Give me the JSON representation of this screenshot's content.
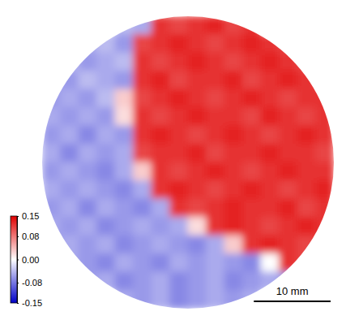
{
  "chart_data": {
    "type": "heatmap",
    "cells": [
      [
        null,
        null,
        null,
        null,
        -0.04,
        -0.05,
        0.12,
        0.11,
        0.12,
        0.13,
        0.11,
        0.12,
        null,
        null,
        null,
        null
      ],
      [
        null,
        null,
        -0.05,
        -0.04,
        -0.06,
        0.11,
        0.12,
        0.13,
        0.12,
        0.11,
        0.12,
        0.13,
        0.12,
        0.11,
        null,
        null
      ],
      [
        null,
        -0.04,
        -0.06,
        -0.05,
        -0.04,
        0.12,
        0.11,
        0.12,
        0.13,
        0.12,
        0.11,
        0.12,
        0.13,
        0.12,
        0.11,
        null
      ],
      [
        -0.05,
        -0.06,
        -0.04,
        -0.05,
        -0.06,
        0.12,
        0.13,
        0.11,
        0.12,
        0.12,
        0.13,
        0.11,
        0.12,
        0.13,
        0.12,
        0.11
      ],
      [
        -0.06,
        -0.05,
        -0.06,
        -0.04,
        0.03,
        0.11,
        0.12,
        0.13,
        0.12,
        0.11,
        0.12,
        0.13,
        0.12,
        0.11,
        0.12,
        0.12
      ],
      [
        -0.05,
        -0.06,
        -0.05,
        -0.06,
        0.02,
        0.12,
        0.11,
        0.12,
        0.13,
        0.12,
        0.12,
        0.11,
        0.13,
        0.12,
        0.11,
        0.12
      ],
      [
        -0.06,
        -0.05,
        -0.07,
        -0.05,
        -0.06,
        0.12,
        0.13,
        0.12,
        0.11,
        0.12,
        0.13,
        0.12,
        0.11,
        0.12,
        0.13,
        0.12
      ],
      [
        -0.05,
        -0.07,
        -0.05,
        -0.06,
        -0.05,
        0.11,
        0.12,
        0.12,
        0.13,
        0.11,
        0.12,
        0.12,
        0.13,
        0.12,
        0.12,
        0.11
      ],
      [
        -0.06,
        -0.05,
        -0.06,
        -0.07,
        -0.05,
        0.03,
        0.12,
        0.11,
        0.12,
        0.13,
        0.12,
        0.11,
        0.12,
        0.13,
        0.12,
        0.12
      ],
      [
        -0.05,
        -0.06,
        -0.05,
        -0.06,
        -0.07,
        -0.05,
        0.12,
        0.13,
        0.12,
        0.11,
        0.12,
        0.13,
        0.12,
        0.11,
        0.12,
        0.13
      ],
      [
        -0.06,
        -0.05,
        -0.07,
        -0.05,
        -0.06,
        -0.07,
        -0.05,
        0.12,
        0.11,
        0.12,
        0.13,
        0.12,
        0.12,
        0.13,
        0.11,
        0.12
      ],
      [
        -0.05,
        -0.06,
        -0.05,
        -0.07,
        -0.06,
        -0.05,
        -0.06,
        -0.05,
        0.02,
        0.12,
        0.13,
        0.12,
        0.11,
        0.12,
        0.13,
        0.12
      ],
      [
        -0.06,
        -0.05,
        -0.06,
        -0.05,
        -0.07,
        -0.06,
        -0.05,
        -0.06,
        -0.07,
        -0.05,
        0.03,
        0.12,
        0.13,
        0.12,
        0.11,
        0.12
      ],
      [
        null,
        -0.05,
        -0.06,
        -0.07,
        -0.05,
        -0.06,
        -0.07,
        -0.05,
        -0.06,
        -0.05,
        -0.06,
        -0.07,
        0.0,
        0.12,
        0.11,
        null
      ],
      [
        null,
        null,
        -0.06,
        -0.05,
        -0.07,
        -0.06,
        -0.05,
        -0.07,
        -0.06,
        -0.05,
        -0.07,
        -0.06,
        -0.05,
        -0.06,
        null,
        null
      ],
      [
        null,
        null,
        null,
        null,
        -0.05,
        -0.06,
        -0.05,
        -0.07,
        -0.06,
        -0.05,
        -0.06,
        -0.05,
        null,
        null,
        null,
        null
      ]
    ],
    "colorbar_range": [
      -0.15,
      0.15
    ],
    "colorbar_ticks": [
      0.15,
      0.08,
      {
        "value": 0,
        "label": "0.00"
      },
      -0.08,
      -0.15
    ],
    "extent_mm": [
      0,
      38
    ],
    "scale_bar": {
      "length": 10,
      "label": "10 mm"
    }
  }
}
